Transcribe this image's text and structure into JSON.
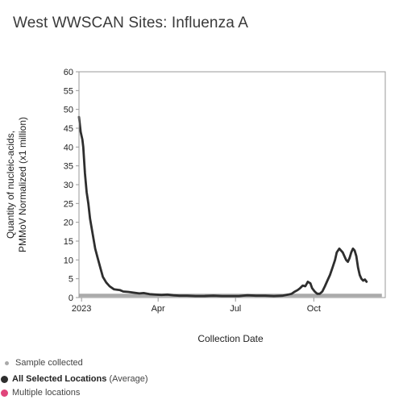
{
  "chart_data": {
    "type": "line",
    "title": "West WWSCAN Sites: Influenza A",
    "xlabel": "Collection Date",
    "ylabel": [
      "Quantity of nucleic-acids,",
      "PMMoV Normalized (x1 million)"
    ],
    "ylim": [
      0,
      60
    ],
    "yticks": [
      0,
      5,
      10,
      15,
      20,
      25,
      30,
      35,
      40,
      45,
      50,
      55,
      60
    ],
    "xlim": [
      "2022-12-29",
      "2023-12-24"
    ],
    "xticks": [
      {
        "date": "2023-01-01",
        "label": "2023"
      },
      {
        "date": "2023-04-01",
        "label": "Apr"
      },
      {
        "date": "2023-07-01",
        "label": "Jul"
      },
      {
        "date": "2023-10-01",
        "label": "Oct"
      }
    ],
    "grid": false,
    "series": [
      {
        "name": "All Selected Locations",
        "color": "#2e2e2e",
        "points": [
          [
            "2022-12-29",
            48
          ],
          [
            "2022-12-31",
            44
          ],
          [
            "2023-01-02",
            42
          ],
          [
            "2023-01-03",
            40
          ],
          [
            "2023-01-05",
            33
          ],
          [
            "2023-01-07",
            28
          ],
          [
            "2023-01-09",
            25
          ],
          [
            "2023-01-11",
            21
          ],
          [
            "2023-01-14",
            17
          ],
          [
            "2023-01-17",
            13
          ],
          [
            "2023-01-20",
            10.5
          ],
          [
            "2023-01-23",
            8
          ],
          [
            "2023-01-26",
            5.5
          ],
          [
            "2023-01-30",
            4
          ],
          [
            "2023-02-03",
            3
          ],
          [
            "2023-02-08",
            2.2
          ],
          [
            "2023-02-15",
            2
          ],
          [
            "2023-02-19",
            1.6
          ],
          [
            "2023-02-25",
            1.5
          ],
          [
            "2023-03-03",
            1.3
          ],
          [
            "2023-03-10",
            1.1
          ],
          [
            "2023-03-15",
            1.2
          ],
          [
            "2023-03-22",
            0.9
          ],
          [
            "2023-03-29",
            0.8
          ],
          [
            "2023-04-05",
            0.7
          ],
          [
            "2023-04-12",
            0.8
          ],
          [
            "2023-04-19",
            0.6
          ],
          [
            "2023-04-26",
            0.5
          ],
          [
            "2023-05-05",
            0.5
          ],
          [
            "2023-05-15",
            0.4
          ],
          [
            "2023-05-25",
            0.4
          ],
          [
            "2023-06-05",
            0.5
          ],
          [
            "2023-06-15",
            0.4
          ],
          [
            "2023-06-25",
            0.4
          ],
          [
            "2023-07-05",
            0.4
          ],
          [
            "2023-07-15",
            0.6
          ],
          [
            "2023-07-25",
            0.5
          ],
          [
            "2023-08-05",
            0.5
          ],
          [
            "2023-08-15",
            0.4
          ],
          [
            "2023-08-25",
            0.5
          ],
          [
            "2023-09-01",
            0.8
          ],
          [
            "2023-09-05",
            1
          ],
          [
            "2023-09-08",
            1.5
          ],
          [
            "2023-09-12",
            2
          ],
          [
            "2023-09-15",
            2.5
          ],
          [
            "2023-09-18",
            3.2
          ],
          [
            "2023-09-21",
            3
          ],
          [
            "2023-09-24",
            4.2
          ],
          [
            "2023-09-27",
            3.8
          ],
          [
            "2023-09-29",
            2.5
          ],
          [
            "2023-10-02",
            1.6
          ],
          [
            "2023-10-05",
            1
          ],
          [
            "2023-10-08",
            1
          ],
          [
            "2023-10-11",
            1.6
          ],
          [
            "2023-10-14",
            3
          ],
          [
            "2023-10-17",
            4.5
          ],
          [
            "2023-10-20",
            6
          ],
          [
            "2023-10-23",
            8
          ],
          [
            "2023-10-26",
            10
          ],
          [
            "2023-10-28",
            12
          ],
          [
            "2023-10-31",
            13
          ],
          [
            "2023-11-02",
            12.5
          ],
          [
            "2023-11-04",
            12
          ],
          [
            "2023-11-06",
            11
          ],
          [
            "2023-11-08",
            10
          ],
          [
            "2023-11-10",
            9.5
          ],
          [
            "2023-11-12",
            10.5
          ],
          [
            "2023-11-14",
            12
          ],
          [
            "2023-11-16",
            13
          ],
          [
            "2023-11-18",
            12.5
          ],
          [
            "2023-11-20",
            11
          ],
          [
            "2023-11-22",
            8
          ],
          [
            "2023-11-24",
            6
          ],
          [
            "2023-11-26",
            5
          ],
          [
            "2023-11-28",
            4.5
          ],
          [
            "2023-11-30",
            4.8
          ],
          [
            "2023-12-02",
            4.2
          ]
        ]
      }
    ],
    "samples": {
      "name": "Sample collected",
      "color": "#aaaaaa",
      "value": 0.6,
      "range": [
        "2022-12-29",
        "2023-12-20"
      ]
    },
    "legend": {
      "placement": "bottom-left",
      "entries": [
        {
          "label": "Sample collected",
          "color": "#aaaaaa"
        },
        {
          "label": "All Selected Locations",
          "suffix": "(Average)",
          "color": "#2e2e2e"
        },
        {
          "label": "Multiple locations",
          "color": "#e0457b"
        }
      ]
    }
  }
}
